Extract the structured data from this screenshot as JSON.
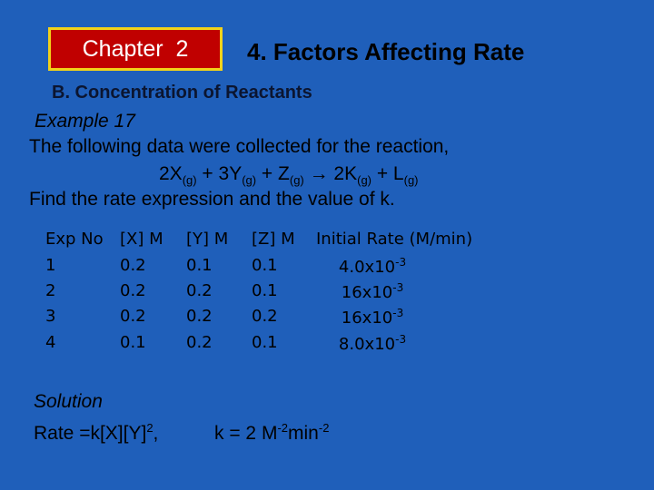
{
  "header": {
    "chapter": "Chapter  2",
    "title": "4. Factors Affecting Rate"
  },
  "section": "B. Concentration of Reactants",
  "example": "Example 17",
  "intro": "The following data were collected for the reaction,",
  "equation": [
    {
      "text": "2X",
      "sub": "(g)"
    },
    {
      "text": " + 3Y",
      "sub": "(g)"
    },
    {
      "text": " + Z",
      "sub": "(g)"
    },
    {
      "text": " → 2K",
      "sub": "(g)"
    },
    {
      "text": " + L",
      "sub": "(g)"
    }
  ],
  "question": "Find the rate expression and the value of k.",
  "table": {
    "headers": [
      "Exp No",
      "[X] M",
      "[Y] M",
      "[Z] M",
      "Initial Rate (M/min)"
    ],
    "rows": [
      [
        "1",
        "0.2",
        "0.1",
        "0.1",
        {
          "base": "4.0x10",
          "exp": "-3"
        }
      ],
      [
        "2",
        "0.2",
        "0.2",
        "0.1",
        {
          "base": "16x10",
          "exp": "-3"
        }
      ],
      [
        "3",
        "0.2",
        "0.2",
        "0.2",
        {
          "base": "16x10",
          "exp": "-3"
        }
      ],
      [
        "4",
        "0.1",
        "0.2",
        "0.1",
        {
          "base": "8.0x10",
          "exp": "-3"
        }
      ]
    ]
  },
  "solution": {
    "label": "Solution",
    "rate": {
      "text": "Rate =k[X][Y]",
      "sup": "2",
      "tail": ","
    },
    "k": [
      {
        "text": "k = 2 M",
        "sup": "-2"
      },
      {
        "text": "min",
        "sup": "-2"
      }
    ]
  }
}
